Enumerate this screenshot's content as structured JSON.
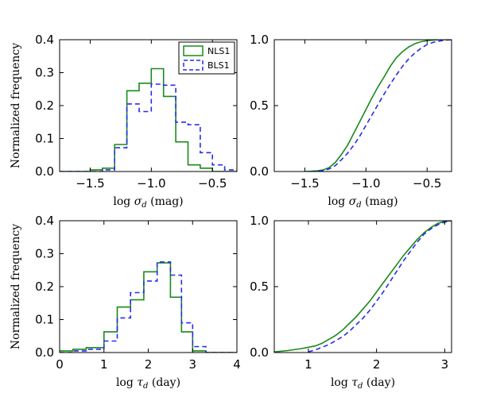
{
  "chart_data": [
    {
      "id": "sigma_hist",
      "type": "step-histogram",
      "xlabel": "log σ_d (mag)",
      "ylabel": "Normalized frequency",
      "xlim": [
        -1.75,
        -0.3
      ],
      "ylim": [
        0,
        0.4
      ],
      "xticks": [
        -1.5,
        -1.0,
        -0.5
      ],
      "xtick_labels": [
        "−1.5",
        "−1.0",
        "−0.5"
      ],
      "yticks": [
        0,
        0.1,
        0.2,
        0.3,
        0.4
      ],
      "ytick_labels": [
        "0.0",
        "0.1",
        "0.2",
        "0.3",
        "0.4"
      ],
      "legend": {
        "location": "top-right",
        "entries": [
          "NLS1",
          "BLS1"
        ]
      },
      "series": [
        {
          "name": "NLS1",
          "color": "#1a8a1a",
          "style": "solid",
          "edges": [
            -1.75,
            -1.5,
            -1.4,
            -1.3,
            -1.2,
            -1.1,
            -1.0,
            -0.9,
            -0.8,
            -0.7,
            -0.6,
            -0.5,
            -0.4,
            -0.3
          ],
          "values": [
            0,
            0.005,
            0.01,
            0.082,
            0.245,
            0.268,
            0.312,
            0.228,
            0.09,
            0.02,
            0.01,
            0,
            0
          ]
        },
        {
          "name": "BLS1",
          "color": "#2a2aee",
          "style": "dashed",
          "edges": [
            -1.75,
            -1.5,
            -1.4,
            -1.3,
            -1.2,
            -1.1,
            -1.0,
            -0.9,
            -0.8,
            -0.7,
            -0.6,
            -0.5,
            -0.4,
            -0.3
          ],
          "values": [
            0,
            0,
            0.005,
            0.072,
            0.205,
            0.182,
            0.265,
            0.262,
            0.15,
            0.142,
            0.057,
            0.02,
            0.005
          ]
        }
      ]
    },
    {
      "id": "sigma_cdf",
      "type": "line",
      "xlabel": "log σ_d (mag)",
      "xlim": [
        -1.75,
        -0.3
      ],
      "ylim": [
        0,
        1.0
      ],
      "xticks": [
        -1.5,
        -1.0,
        -0.5
      ],
      "xtick_labels": [
        "−1.5",
        "−1.0",
        "−0.5"
      ],
      "yticks": [
        0,
        0.5,
        1.0
      ],
      "ytick_labels": [
        "0.0",
        "0.5",
        "1.0"
      ],
      "series": [
        {
          "name": "NLS1",
          "color": "#1a8a1a",
          "style": "solid",
          "x": [
            -1.5,
            -1.45,
            -1.4,
            -1.35,
            -1.3,
            -1.25,
            -1.2,
            -1.15,
            -1.1,
            -1.05,
            -1.0,
            -0.95,
            -0.9,
            -0.85,
            -0.8,
            -0.75,
            -0.7,
            -0.65,
            -0.6,
            -0.55,
            -0.5,
            -0.45,
            -0.4,
            -0.3
          ],
          "y": [
            0,
            0.002,
            0.005,
            0.012,
            0.03,
            0.07,
            0.13,
            0.2,
            0.29,
            0.38,
            0.47,
            0.56,
            0.645,
            0.72,
            0.8,
            0.865,
            0.91,
            0.945,
            0.97,
            0.985,
            0.993,
            0.997,
            1.0,
            1.0
          ]
        },
        {
          "name": "BLS1",
          "color": "#2a2aee",
          "style": "dashed",
          "x": [
            -1.45,
            -1.4,
            -1.35,
            -1.3,
            -1.25,
            -1.2,
            -1.15,
            -1.1,
            -1.05,
            -1.0,
            -0.95,
            -0.9,
            -0.85,
            -0.8,
            -0.75,
            -0.7,
            -0.65,
            -0.6,
            -0.55,
            -0.5,
            -0.45,
            -0.4,
            -0.35,
            -0.3
          ],
          "y": [
            0,
            0.003,
            0.008,
            0.02,
            0.045,
            0.09,
            0.14,
            0.2,
            0.27,
            0.35,
            0.43,
            0.51,
            0.59,
            0.665,
            0.735,
            0.8,
            0.855,
            0.9,
            0.935,
            0.963,
            0.98,
            0.99,
            0.997,
            1.0
          ]
        }
      ]
    },
    {
      "id": "tau_hist",
      "type": "step-histogram",
      "xlabel": "log τ_d (day)",
      "ylabel": "Normalized frequency",
      "xlim": [
        0,
        4
      ],
      "ylim": [
        0,
        0.4
      ],
      "xticks": [
        0,
        1,
        2,
        3,
        4
      ],
      "xtick_labels": [
        "0",
        "1",
        "2",
        "3",
        "4"
      ],
      "yticks": [
        0,
        0.1,
        0.2,
        0.3,
        0.4
      ],
      "ytick_labels": [
        "0.0",
        "0.1",
        "0.2",
        "0.3",
        "0.4"
      ],
      "series": [
        {
          "name": "NLS1",
          "color": "#1a8a1a",
          "style": "solid",
          "edges": [
            0,
            0.3,
            0.6,
            1.0,
            1.3,
            1.6,
            1.9,
            2.2,
            2.5,
            2.75,
            3.0,
            3.3,
            4.0
          ],
          "values": [
            0.005,
            0.01,
            0.015,
            0.063,
            0.138,
            0.16,
            0.245,
            0.272,
            0.168,
            0.063,
            0.005,
            0
          ]
        },
        {
          "name": "BLS1",
          "color": "#2a2aee",
          "style": "dashed",
          "edges": [
            0,
            0.3,
            0.6,
            1.0,
            1.3,
            1.6,
            1.9,
            2.2,
            2.5,
            2.75,
            3.0,
            3.3,
            4.0
          ],
          "values": [
            0,
            0.005,
            0.01,
            0.035,
            0.105,
            0.182,
            0.217,
            0.275,
            0.235,
            0.09,
            0.018,
            0
          ]
        }
      ]
    },
    {
      "id": "tau_cdf",
      "type": "line",
      "xlabel": "log τ_d (day)",
      "xlim": [
        0.5,
        3.1
      ],
      "ylim": [
        0,
        1.0
      ],
      "xticks": [
        1,
        2,
        3
      ],
      "xtick_labels": [
        "1",
        "2",
        "3"
      ],
      "yticks": [
        0,
        0.5,
        1.0
      ],
      "ytick_labels": [
        "0.0",
        "0.5",
        "1.0"
      ],
      "series": [
        {
          "name": "NLS1",
          "color": "#1a8a1a",
          "style": "solid",
          "x": [
            0.5,
            0.7,
            0.9,
            1.1,
            1.2,
            1.3,
            1.4,
            1.5,
            1.6,
            1.7,
            1.8,
            1.9,
            2.0,
            2.1,
            2.2,
            2.3,
            2.4,
            2.5,
            2.6,
            2.7,
            2.8,
            2.9,
            3.0,
            3.1
          ],
          "y": [
            0.005,
            0.015,
            0.03,
            0.05,
            0.07,
            0.1,
            0.13,
            0.17,
            0.22,
            0.27,
            0.33,
            0.39,
            0.46,
            0.53,
            0.6,
            0.67,
            0.74,
            0.8,
            0.86,
            0.91,
            0.95,
            0.98,
            0.995,
            1.0
          ]
        },
        {
          "name": "BLS1",
          "color": "#2a2aee",
          "style": "dashed",
          "x": [
            1.0,
            1.1,
            1.2,
            1.3,
            1.4,
            1.5,
            1.6,
            1.7,
            1.8,
            1.9,
            2.0,
            2.1,
            2.2,
            2.3,
            2.4,
            2.5,
            2.6,
            2.7,
            2.8,
            2.9,
            3.0,
            3.1
          ],
          "y": [
            0.005,
            0.02,
            0.04,
            0.06,
            0.09,
            0.12,
            0.16,
            0.21,
            0.26,
            0.32,
            0.39,
            0.46,
            0.54,
            0.62,
            0.7,
            0.77,
            0.84,
            0.9,
            0.94,
            0.97,
            0.99,
            1.0
          ]
        }
      ]
    }
  ]
}
